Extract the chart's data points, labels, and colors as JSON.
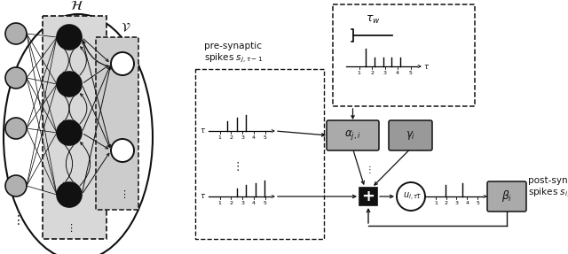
{
  "fig_width": 6.4,
  "fig_height": 2.87,
  "dpi": 100,
  "bg_color": "#ffffff",
  "dark": "#111111",
  "gray_input": "#b0b0b0",
  "gray_box_fill": "#d8d8d8",
  "gray_v_fill": "#cccccc",
  "gray_param": "#aaaaaa",
  "gray_param2": "#999999",
  "white": "#ffffff"
}
